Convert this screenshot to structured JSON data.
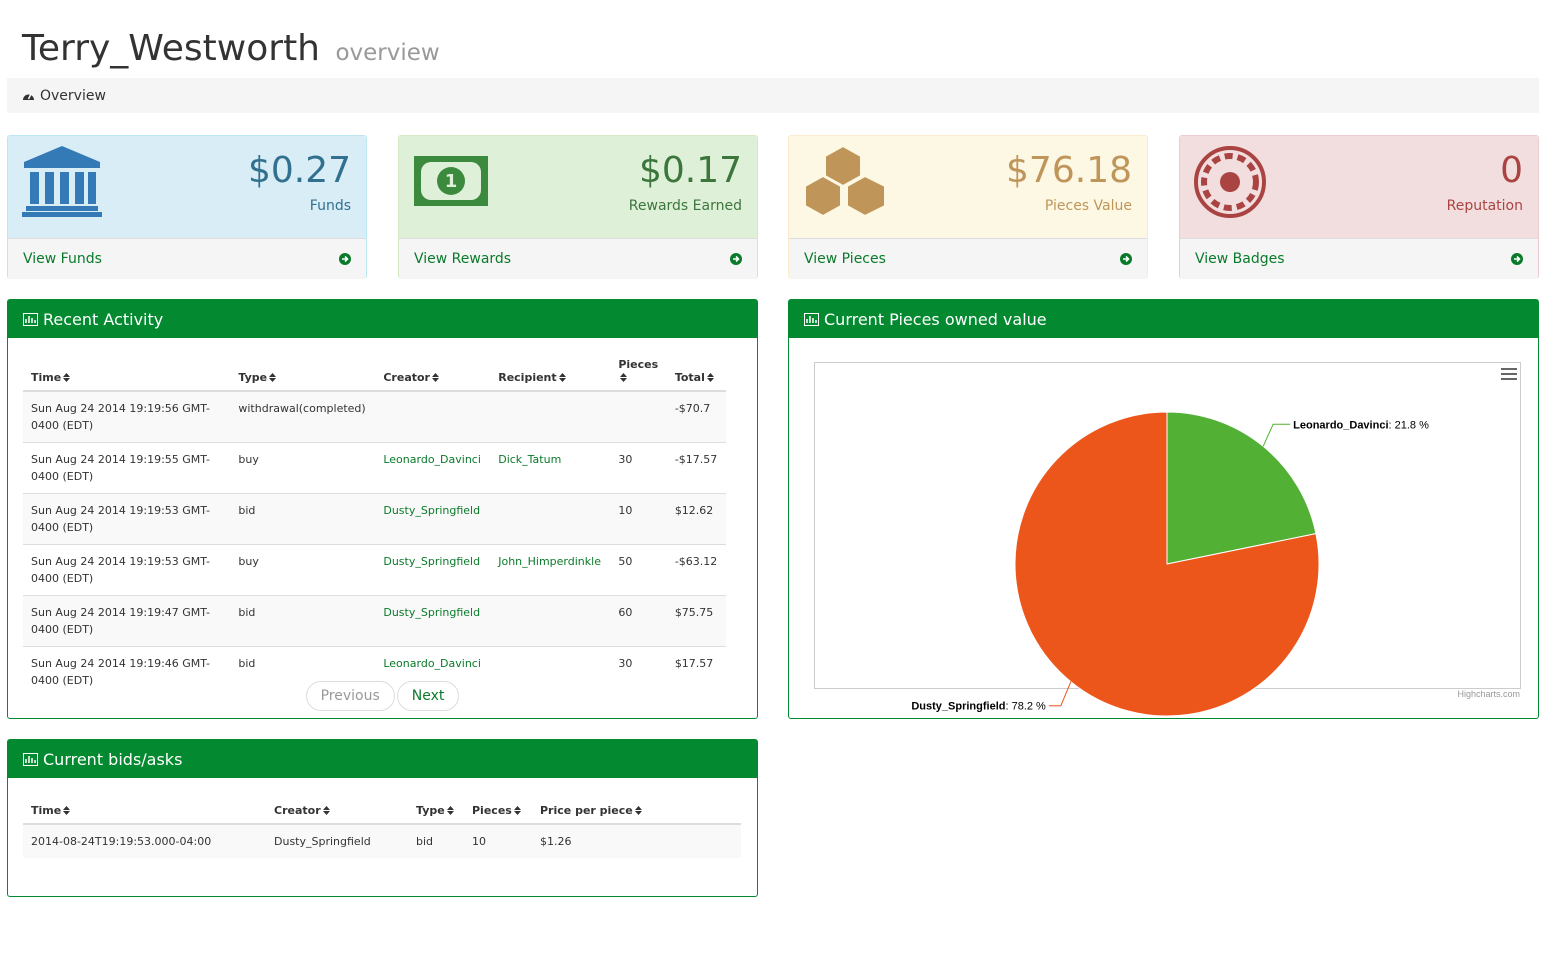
{
  "header": {
    "title": "Terry_Westworth",
    "subtitle": "overview"
  },
  "breadcrumb": "Overview",
  "stats": [
    {
      "value": "$0.27",
      "label": "Funds",
      "link": "View Funds"
    },
    {
      "value": "$0.17",
      "label": "Rewards Earned",
      "link": "View Rewards"
    },
    {
      "value": "$76.18",
      "label": "Pieces Value",
      "link": "View Pieces"
    },
    {
      "value": "0",
      "label": "Reputation",
      "link": "View Badges"
    }
  ],
  "recent_activity": {
    "title": "Recent Activity",
    "columns": [
      "Time",
      "Type",
      "Creator",
      "Recipient",
      "Pieces",
      "Total"
    ],
    "rows": [
      [
        "Sun Aug 24 2014 19:19:56 GMT-0400 (EDT)",
        "withdrawal(completed)",
        null,
        null,
        null,
        "-$70.7"
      ],
      [
        "Sun Aug 24 2014 19:19:55 GMT-0400 (EDT)",
        "buy",
        "Leonardo_Davinci",
        "Dick_Tatum",
        30,
        "-$17.57"
      ],
      [
        "Sun Aug 24 2014 19:19:53 GMT-0400 (EDT)",
        "bid",
        "Dusty_Springfield",
        null,
        10,
        "$12.62"
      ],
      [
        "Sun Aug 24 2014 19:19:53 GMT-0400 (EDT)",
        "buy",
        "Dusty_Springfield",
        "John_Himperdinkle",
        50,
        "-$63.12"
      ],
      [
        "Sun Aug 24 2014 19:19:47 GMT-0400 (EDT)",
        "bid",
        "Dusty_Springfield",
        null,
        60,
        "$75.75"
      ],
      [
        "Sun Aug 24 2014 19:19:46 GMT-0400 (EDT)",
        "bid",
        "Leonardo_Davinci",
        null,
        30,
        "$17.57"
      ]
    ],
    "pager": [
      "Previous",
      "Next"
    ]
  },
  "chart_data": {
    "type": "pie",
    "title": "Current Pieces owned value",
    "categories": [
      "Leonardo_Davinci",
      "Dusty_Springfield"
    ],
    "values": [
      21.8,
      78.2
    ],
    "value_labels": [
      ": 21.8 %",
      ": 78.2 %"
    ],
    "colors": [
      "#52b134",
      "#ec561b"
    ],
    "credit": "Highcharts.com"
  },
  "bids": {
    "title": "Current bids/asks",
    "columns": [
      "Time",
      "Creator",
      "Type",
      "Pieces",
      "Price per piece"
    ],
    "rows": [
      [
        "2014-08-24T19:19:53.000-04:00",
        "Dusty_Springfield",
        "bid",
        10,
        "$1.26"
      ]
    ]
  }
}
